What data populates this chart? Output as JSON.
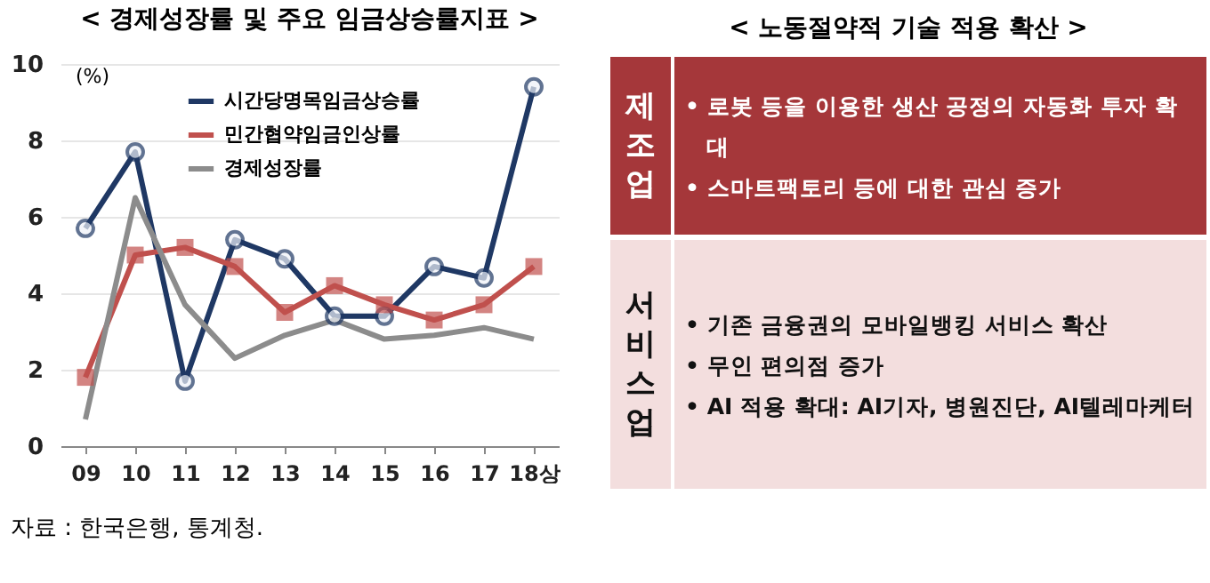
{
  "chart_data": [
    {
      "type": "line",
      "title": "< 경제성장률 및 주요 임금상승률지표 >",
      "ylabel": "(%)",
      "categories": [
        "09",
        "10",
        "11",
        "12",
        "13",
        "14",
        "15",
        "16",
        "17",
        "18상"
      ],
      "series": [
        {
          "name": "시간당명목임금상승률",
          "color": "#1f3864",
          "marker": "circle",
          "values": [
            5.7,
            7.7,
            1.7,
            5.4,
            4.9,
            3.4,
            3.4,
            4.7,
            4.4,
            9.4
          ]
        },
        {
          "name": "민간협약임금인상률",
          "color": "#c0504d",
          "marker": "square",
          "values": [
            1.8,
            5.0,
            5.2,
            4.7,
            3.5,
            4.2,
            3.7,
            3.3,
            3.7,
            4.7
          ]
        },
        {
          "name": "경제성장률",
          "color": "#8c8c8c",
          "values": [
            0.7,
            6.5,
            3.7,
            2.3,
            2.9,
            3.3,
            2.8,
            2.9,
            3.1,
            2.8
          ]
        }
      ],
      "ylim": [
        0,
        10
      ],
      "yticks": [
        0,
        2,
        4,
        6,
        8,
        10
      ],
      "grid": "y",
      "legend": "top left",
      "annotations": [
        "자료 : 한국은행, 통계청."
      ]
    },
    {
      "type": "other",
      "title": "< 노동절약적 기술 적용 확산 >",
      "categories": [
        "제조업",
        "서비스업"
      ],
      "colors": [
        "#a5373a",
        "#f3dede"
      ],
      "annotations": [
        {
          "text": "• 로봇 등을 이용한 생산 공정의 자동화 투자 확대",
          "x": "제조업"
        },
        {
          "text": "• 스마트팩토리 등에 대한 관심 증가",
          "x": "제조업"
        },
        {
          "text": "• 기존 금융권의 모바일뱅킹 서비스 확산",
          "x": "서비스업"
        },
        {
          "text": "• 무인 편의점 증가",
          "x": "서비스업"
        },
        {
          "text": "• AI 적용 확대: AI기자, 병원진단, AI텔레마케터",
          "x": "서비스업"
        }
      ]
    }
  ]
}
